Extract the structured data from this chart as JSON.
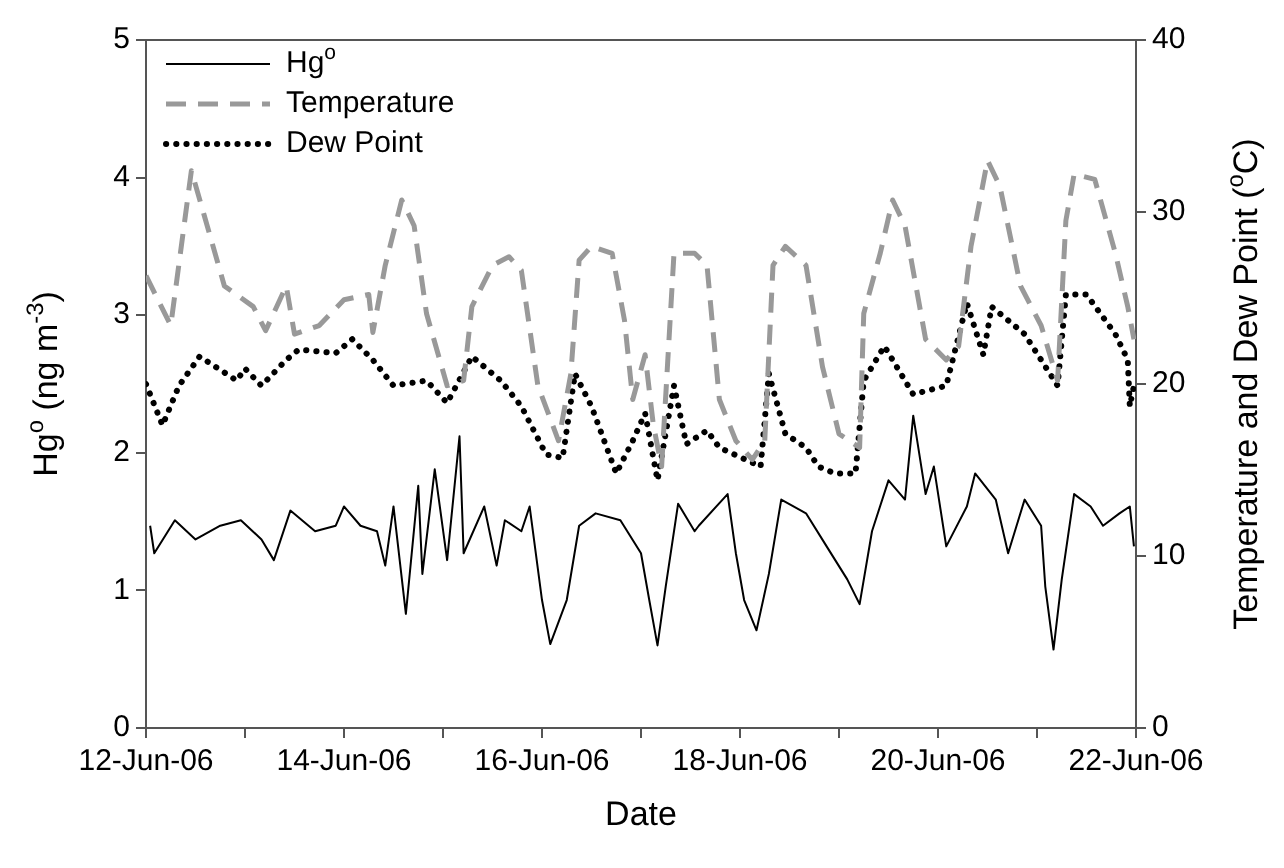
{
  "chart_data": {
    "type": "line",
    "xlabel": "Date",
    "ylabel": "Hg$^{o}$ (ng m$^{-3}$)",
    "y2label": "Temperature and Dew Point ($^{o}$C)",
    "xlim": [
      "--06-12",
      "--06-22"
    ],
    "xticks": [
      {
        "value": "--06-12",
        "label": "12-Jun-06"
      },
      {
        "value": "--06-13",
        "label": null
      },
      {
        "value": "--06-14",
        "label": "14-Jun-06"
      },
      {
        "value": "--06-15",
        "label": null
      },
      {
        "value": "--06-16",
        "label": "16-Jun-06"
      },
      {
        "value": "--06-17",
        "label": null
      },
      {
        "value": "--06-18",
        "label": "18-Jun-06"
      },
      {
        "value": "--06-19",
        "label": null
      },
      {
        "value": "--06-20",
        "label": "20-Jun-06"
      },
      {
        "value": "--06-21",
        "label": null
      },
      {
        "value": "--06-22",
        "label": "22-Jun-06"
      }
    ],
    "ylim": [
      0,
      5
    ],
    "yticks": [
      0,
      1,
      2,
      3,
      4,
      5
    ],
    "y2lim": [
      0,
      40
    ],
    "y2ticks": [
      0,
      10,
      20,
      30,
      40
    ],
    "grid": false,
    "legend": "top left",
    "marker": "none",
    "series": [
      {
        "name": "Hg$^{o}$",
        "color": "#000000",
        "line_style": "solid",
        "x": [
          "--06-12T01:00",
          "--06-12T02:00",
          "--06-12T07:00",
          "--06-12T12:00",
          "--06-12T18:00",
          "--06-12T23:00",
          "--06-13T04:00",
          "--06-13T07:00",
          "--06-13T11:00",
          "--06-13T17:00",
          "--06-13T22:00",
          "--06-14T00:00",
          "--06-14T04:00",
          "--06-14T08:00",
          "--06-14T10:00",
          "--06-14T12:00",
          "--06-14T15:00",
          "--06-14T18:00",
          "--06-14T19:00",
          "--06-14T22:00",
          "--06-15T01:00",
          "--06-15T04:00",
          "--06-15T05:00",
          "--06-15T10:00",
          "--06-15T13:00",
          "--06-15T15:00",
          "--06-15T19:00",
          "--06-15T21:00",
          "--06-16T00:00",
          "--06-16T02:00",
          "--06-16T06:00",
          "--06-16T09:00",
          "--06-16T13:00",
          "--06-16T19:00",
          "--06-17T00:00",
          "--06-17T02:00",
          "--06-17T04:00",
          "--06-17T06:00",
          "--06-17T09:00",
          "--06-17T13:00",
          "--06-17T14:00",
          "--06-17T21:00",
          "--06-17T23:00",
          "--06-18T01:00",
          "--06-18T04:00",
          "--06-18T07:00",
          "--06-18T10:00",
          "--06-18T16:00",
          "--06-18T21:00",
          "--06-19T02:00",
          "--06-19T05:00",
          "--06-19T08:00",
          "--06-19T12:00",
          "--06-19T16:00",
          "--06-19T18:00",
          "--06-19T21:00",
          "--06-19T23:00",
          "--06-20T02:00",
          "--06-20T07:00",
          "--06-20T09:00",
          "--06-20T14:00",
          "--06-20T17:00",
          "--06-20T21:00",
          "--06-21T01:00",
          "--06-21T02:00",
          "--06-21T04:00",
          "--06-21T06:00",
          "--06-21T09:00",
          "--06-21T13:00",
          "--06-21T16:00",
          "--06-21T20:00",
          "--06-21T22:30",
          "--06-21T23:30"
        ],
        "values": [
          1.47,
          1.27,
          1.51,
          1.37,
          1.47,
          1.51,
          1.37,
          1.22,
          1.58,
          1.43,
          1.47,
          1.61,
          1.47,
          1.43,
          1.18,
          1.61,
          0.83,
          1.76,
          1.12,
          1.88,
          1.22,
          2.12,
          1.27,
          1.61,
          1.18,
          1.51,
          1.43,
          1.61,
          0.93,
          0.61,
          0.93,
          1.47,
          1.56,
          1.51,
          1.27,
          0.93,
          0.6,
          1.03,
          1.63,
          1.43,
          1.47,
          1.7,
          1.27,
          0.93,
          0.71,
          1.12,
          1.66,
          1.56,
          1.32,
          1.08,
          0.9,
          1.43,
          1.8,
          1.66,
          2.27,
          1.7,
          1.9,
          1.32,
          1.61,
          1.85,
          1.66,
          1.27,
          1.66,
          1.47,
          1.03,
          0.57,
          1.08,
          1.7,
          1.61,
          1.47,
          1.56,
          1.61,
          1.32
        ]
      },
      {
        "name": "Temperature",
        "color": "#999999",
        "line_style": "dashed",
        "axis": "y2",
        "x": [
          "--06-12T00:00",
          "--06-12T06:00",
          "--06-12T11:00",
          "--06-12T14:00",
          "--06-12T19:00",
          "--06-13T02:00",
          "--06-13T05:00",
          "--06-13T10:00",
          "--06-13T12:00",
          "--06-13T18:00",
          "--06-14T00:00",
          "--06-14T06:00",
          "--06-14T07:00",
          "--06-14T10:00",
          "--06-14T14:00",
          "--06-14T17:00",
          "--06-14T20:00",
          "--06-15T01:00",
          "--06-15T05:00",
          "--06-15T07:00",
          "--06-15T12:00",
          "--06-15T16:00",
          "--06-15T19:00",
          "--06-15T23:00",
          "--06-16T04:00",
          "--06-16T07:00",
          "--06-16T09:00",
          "--06-16T12:00",
          "--06-16T17:00",
          "--06-16T20:00",
          "--06-16T22:00",
          "--06-17T01:00",
          "--06-17T03:00",
          "--06-17T05:00",
          "--06-17T08:00",
          "--06-17T13:00",
          "--06-17T16:00",
          "--06-17T19:00",
          "--06-17T23:00",
          "--06-18T03:00",
          "--06-18T06:00",
          "--06-18T08:00",
          "--06-18T11:00",
          "--06-18T16:00",
          "--06-18T20:00",
          "--06-19T00:00",
          "--06-19T05:00",
          "--06-19T06:00",
          "--06-19T10:00",
          "--06-19T13:00",
          "--06-19T16:00",
          "--06-19T21:00",
          "--06-20T02:00",
          "--06-20T05:00",
          "--06-20T08:00",
          "--06-20T12:00",
          "--06-20T15:00",
          "--06-20T20:00",
          "--06-21T01:00",
          "--06-21T05:00",
          "--06-21T07:00",
          "--06-21T09:00",
          "--06-21T14:00",
          "--06-21T19:00",
          "--06-21T22:00",
          "--06-21T23:30"
        ],
        "values": [
          26.3,
          23.4,
          32.4,
          29.9,
          25.7,
          24.5,
          23.1,
          25.7,
          22.9,
          23.4,
          24.9,
          25.2,
          23.0,
          26.9,
          30.7,
          29.2,
          24.1,
          19.9,
          20.2,
          24.5,
          26.9,
          27.4,
          26.6,
          19.9,
          16.7,
          20.6,
          27.2,
          28.0,
          27.6,
          23.7,
          19.1,
          21.7,
          17.6,
          15.2,
          27.6,
          27.6,
          26.9,
          19.1,
          16.7,
          15.6,
          16.7,
          26.9,
          28.0,
          26.9,
          21.0,
          17.1,
          16.3,
          24.1,
          27.6,
          30.7,
          29.2,
          22.6,
          21.4,
          22.2,
          28.0,
          33.0,
          31.5,
          25.7,
          23.4,
          20.2,
          29.5,
          32.2,
          31.9,
          27.6,
          24.5,
          22.6
        ]
      },
      {
        "name": "Dew Point",
        "color": "#000000",
        "line_style": "dotted",
        "axis": "y2",
        "x": [
          "--06-12T00:00",
          "--06-12T04:00",
          "--06-12T08:00",
          "--06-12T13:00",
          "--06-12T22:00",
          "--06-13T00:00",
          "--06-13T04:00",
          "--06-13T10:00",
          "--06-13T13:00",
          "--06-13T22:00",
          "--06-14T02:00",
          "--06-14T07:00",
          "--06-14T12:00",
          "--06-14T20:00",
          "--06-15T01:00",
          "--06-15T07:00",
          "--06-15T14:00",
          "--06-15T19:00",
          "--06-16T01:00",
          "--06-16T05:00",
          "--06-16T08:00",
          "--06-16T12:00",
          "--06-16T18:00",
          "--06-16T22:00",
          "--06-17T01:00",
          "--06-17T04:00",
          "--06-17T08:00",
          "--06-17T11:00",
          "--06-17T16:00",
          "--06-17T19:00",
          "--06-18T05:00",
          "--06-18T07:00",
          "--06-18T11:00",
          "--06-18T16:00",
          "--06-18T19:00",
          "--06-18T23:00",
          "--06-19T04:00",
          "--06-19T06:00",
          "--06-19T11:00",
          "--06-19T18:00",
          "--06-20T02:00",
          "--06-20T07:00",
          "--06-20T11:00",
          "--06-20T13:00",
          "--06-20T21:00",
          "--06-21T05:00",
          "--06-21T07:00",
          "--06-21T12:00",
          "--06-21T19:00",
          "--06-21T22:00",
          "--06-21T22:30",
          "--06-21T23:30"
        ],
        "values": [
          20.0,
          17.6,
          19.9,
          21.6,
          20.2,
          20.9,
          19.9,
          21.4,
          22.0,
          21.8,
          22.6,
          21.4,
          19.9,
          20.2,
          18.9,
          21.6,
          20.2,
          18.7,
          15.9,
          15.7,
          20.6,
          18.7,
          14.8,
          16.7,
          18.3,
          14.4,
          19.9,
          16.5,
          17.3,
          16.3,
          15.2,
          20.6,
          17.1,
          16.3,
          15.2,
          14.8,
          14.8,
          20.2,
          22.2,
          19.4,
          19.9,
          24.7,
          21.7,
          24.5,
          22.9,
          19.9,
          25.2,
          25.2,
          22.9,
          21.4,
          18.7,
          19.9
        ]
      }
    ]
  }
}
